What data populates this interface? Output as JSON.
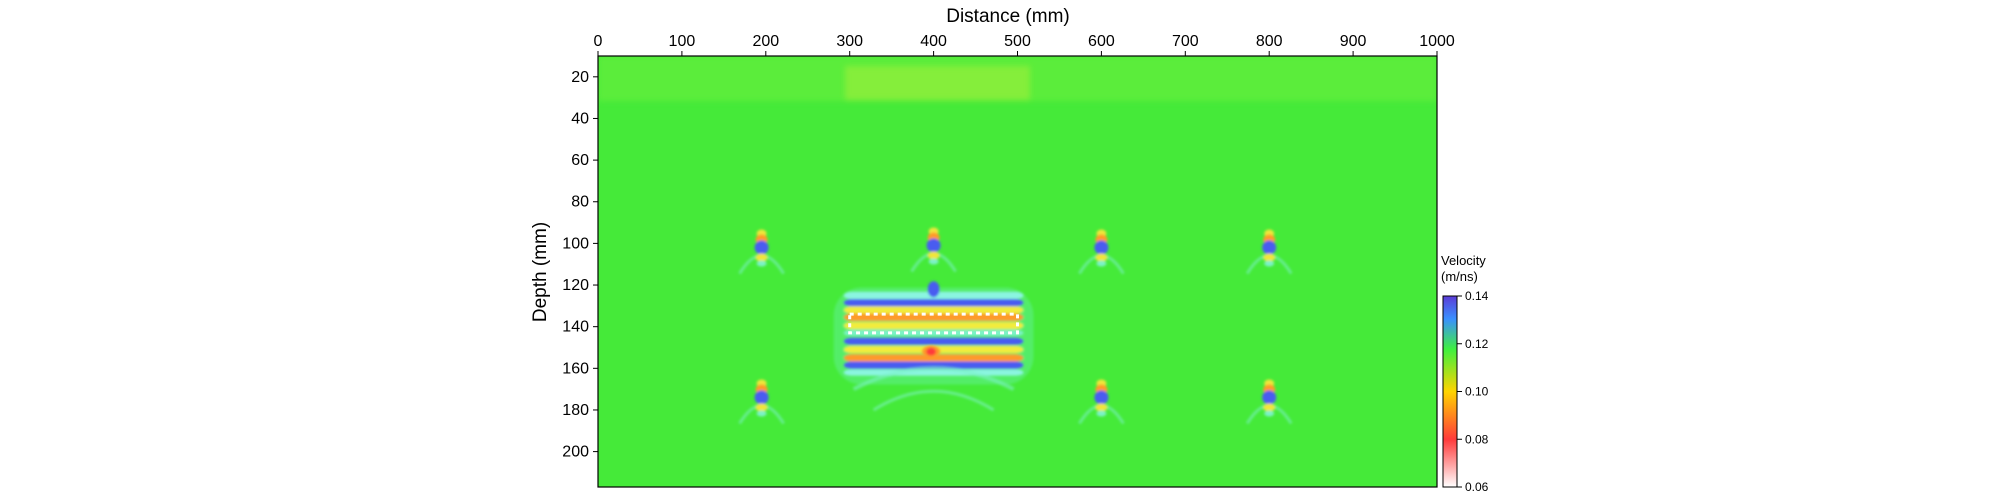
{
  "chart_data": {
    "type": "heatmap",
    "title": "",
    "xlabel": "Distance (mm)",
    "ylabel": "Depth (mm)",
    "x_axis_position": "top",
    "xlim": [
      0,
      1000
    ],
    "ylim": [
      10,
      217
    ],
    "y_inverted": true,
    "x_ticks": [
      0,
      100,
      200,
      300,
      400,
      500,
      600,
      700,
      800,
      900,
      1000
    ],
    "y_ticks": [
      20,
      40,
      60,
      80,
      100,
      120,
      140,
      160,
      180,
      200
    ],
    "background_value": 0.118,
    "colorbar": {
      "title_line1": "Velocity",
      "title_line2": "(m/ns)",
      "range": [
        0.06,
        0.14
      ],
      "ticks": [
        "0.14",
        "0.12",
        "0.10",
        "0.08",
        "0.06"
      ],
      "ticks_values": [
        0.14,
        0.12,
        0.1,
        0.08,
        0.06
      ],
      "colors": [
        "#ffffff",
        "#ff3a3a",
        "#ffd400",
        "#3ff03f",
        "#3a90ff",
        "#5b3cd6"
      ]
    },
    "features": [
      {
        "name": "point anomaly",
        "x": 195,
        "depth": 102,
        "peak_velocity": 0.14
      },
      {
        "name": "point anomaly",
        "x": 195,
        "depth": 174,
        "peak_velocity": 0.14
      },
      {
        "name": "point anomaly",
        "x": 400,
        "depth": 101,
        "peak_velocity": 0.14
      },
      {
        "name": "point anomaly",
        "x": 600,
        "depth": 102,
        "peak_velocity": 0.14
      },
      {
        "name": "point anomaly",
        "x": 600,
        "depth": 174,
        "peak_velocity": 0.14
      },
      {
        "name": "point anomaly",
        "x": 800,
        "depth": 102,
        "peak_velocity": 0.14
      },
      {
        "name": "point anomaly",
        "x": 800,
        "depth": 174,
        "peak_velocity": 0.14
      },
      {
        "name": "layered anomaly",
        "x_range": [
          300,
          500
        ],
        "depth_range": [
          126,
          162
        ],
        "peak_velocity": 0.14
      },
      {
        "name": "low-velocity spot",
        "x": 397,
        "depth": 152,
        "peak_velocity": 0.1
      }
    ],
    "annotation_box": {
      "style": "white dashed",
      "x_range": [
        300,
        500
      ],
      "depth_range": [
        134,
        143
      ]
    }
  }
}
